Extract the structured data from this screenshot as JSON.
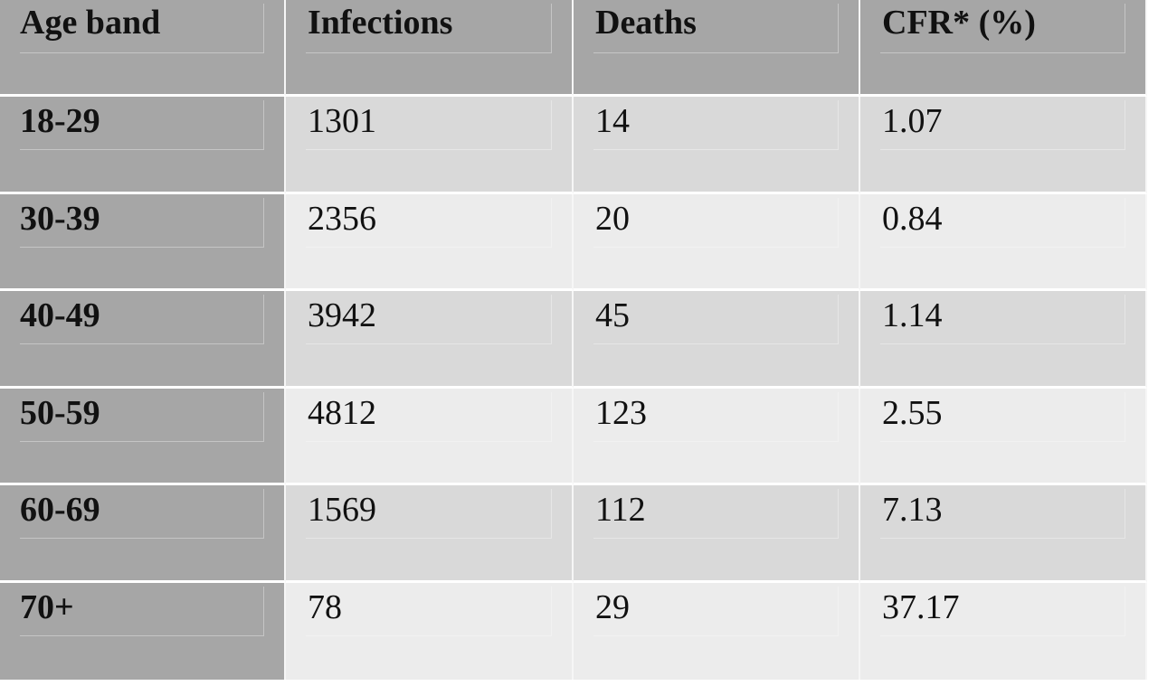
{
  "table": {
    "headers": [
      "Age band",
      "Infections",
      "Deaths",
      "CFR* (%)"
    ],
    "rows": [
      [
        "18-29",
        "1301",
        "14",
        "1.07"
      ],
      [
        "30-39",
        "2356",
        "20",
        "0.84"
      ],
      [
        "40-49",
        "3942",
        "45",
        "1.14"
      ],
      [
        "50-59",
        "4812",
        "123",
        "2.55"
      ],
      [
        "60-69",
        "1569",
        "112",
        "7.13"
      ],
      [
        "70+",
        "78",
        "29",
        "37.17"
      ]
    ]
  },
  "colors": {
    "header_bg": "#a6a6a6",
    "row_odd_bg": "#d9d9d9",
    "row_even_bg": "#ececec"
  }
}
